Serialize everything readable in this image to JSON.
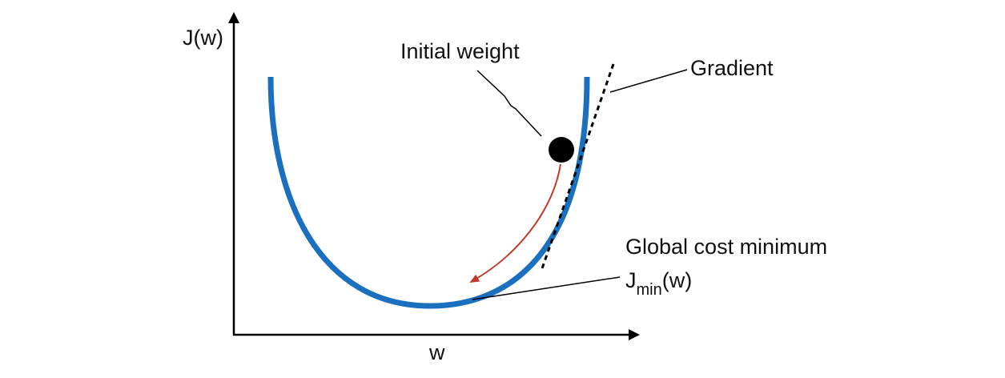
{
  "axes": {
    "y_label": "J(w)",
    "x_label": "w"
  },
  "labels": {
    "initial_weight": "Initial weight",
    "gradient": "Gradient",
    "global_cost_minimum": "Global cost minimum",
    "jmin_base": "J",
    "jmin_subscript": "min",
    "jmin_suffix": "(w)"
  },
  "colors": {
    "curve": "#1a6fbf",
    "descent_arrow": "#c0392b",
    "axes": "#000000",
    "weight_point": "#000000",
    "tangent": "#000000"
  }
}
